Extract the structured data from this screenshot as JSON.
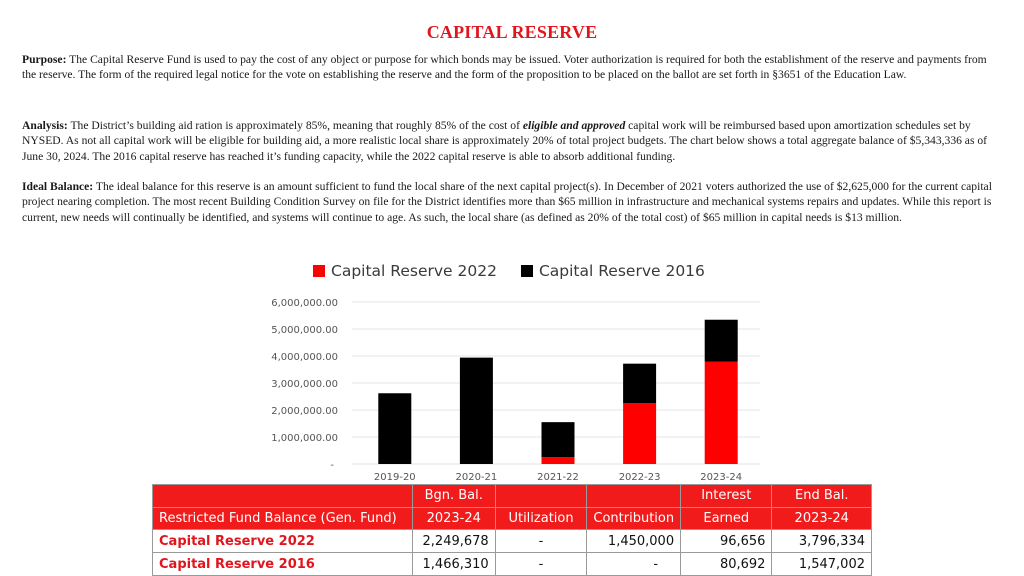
{
  "title": "CAPITAL RESERVE",
  "purpose": {
    "label": "Purpose:",
    "text": "The Capital Reserve Fund is used to pay the cost of any object or purpose for which bonds may be issued. Voter authorization is required for both the establishment of the reserve and payments from the reserve. The form of the required legal notice for the vote on establishing the reserve and the form of the proposition to be placed on the ballot are set forth in §3651 of the Education Law."
  },
  "analysis": {
    "label": "Analysis:",
    "text_before": "The District’s building aid ration is approximately 85%, meaning that roughly 85% of the cost of ",
    "emphasis": "eligible and approved",
    "text_after": " capital work will be reimbursed based upon amortization schedules set by NYSED. As not all capital work will be eligible for building aid, a more realistic local share is approximately 20% of total project budgets. The chart below shows a total aggregate balance of $5,343,336 as of June 30, 2024. The 2016 capital reserve has reached it’s funding capacity, while the 2022 capital reserve is able to absorb additional funding."
  },
  "ideal": {
    "label": "Ideal Balance:",
    "text": "The ideal balance for this reserve is an amount sufficient to fund the local share of the next capital project(s). In December of 2021 voters authorized the use of $2,625,000 for the current capital project nearing completion. The most recent Building Condition Survey on file for the District identifies more than $65 million in infrastructure and mechanical systems repairs and updates. While this report is current, new needs will continually be identified, and systems will continue to age. As such, the local share (as defined as 20% of the total cost) of $65 million in capital needs is $13 million."
  },
  "chart_data": {
    "type": "bar",
    "stacked": true,
    "categories": [
      "2019-20",
      "2020-21",
      "2021-22",
      "2022-23",
      "2023-24"
    ],
    "series": [
      {
        "name": "Capital Reserve 2022",
        "color": "#ff0000",
        "values": [
          0,
          0,
          250000,
          2249678,
          3796334
        ]
      },
      {
        "name": "Capital Reserve 2016",
        "color": "#000000",
        "values": [
          2620000,
          3940000,
          1300000,
          1466310,
          1547002
        ]
      }
    ],
    "y_ticks": [
      "-",
      "1,000,000.00",
      "2,000,000.00",
      "3,000,000.00",
      "4,000,000.00",
      "5,000,000.00",
      "6,000,000.00"
    ],
    "ylim": [
      0,
      6000000
    ],
    "title": "",
    "xlabel": "",
    "ylabel": "",
    "legend_position": "top"
  },
  "table": {
    "header_row1": [
      "",
      "Bgn. Bal.",
      "",
      "",
      "Interest",
      "End Bal."
    ],
    "header_row2": [
      "Restricted Fund Balance (Gen. Fund)",
      "2023-24",
      "Utilization",
      "Contribution",
      "Earned",
      "2023-24"
    ],
    "rows": [
      {
        "name": "Capital Reserve 2022",
        "bgn": "2,249,678",
        "util": "-",
        "contrib": "1,450,000",
        "interest": "96,656",
        "end": "3,796,334"
      },
      {
        "name": "Capital Reserve 2016",
        "bgn": "1,466,310",
        "util": "-",
        "contrib": "-",
        "interest": "80,692",
        "end": "1,547,002"
      }
    ]
  }
}
